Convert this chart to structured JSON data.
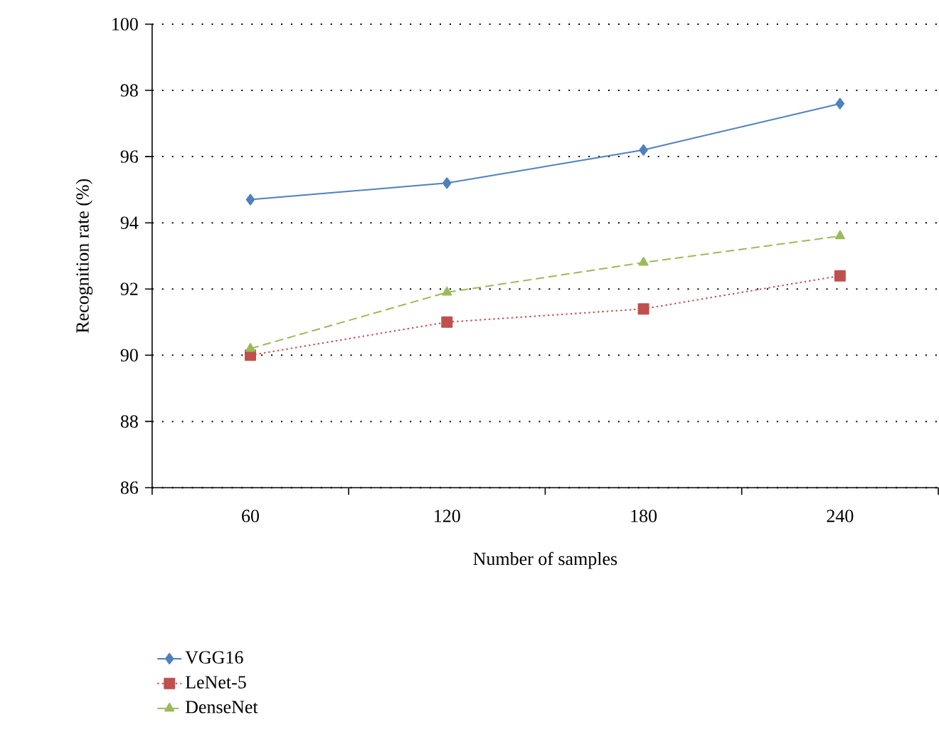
{
  "chart_data": {
    "type": "line",
    "xlabel": "Number of samples",
    "ylabel": "Recognition rate (%)",
    "categories": [
      "60",
      "120",
      "180",
      "240"
    ],
    "series": [
      {
        "name": "VGG16",
        "color": "#4f81bd",
        "marker": "diamond",
        "line_style": "solid",
        "values": [
          94.7,
          95.2,
          96.2,
          97.6
        ]
      },
      {
        "name": "LeNet-5",
        "color": "#c0504d",
        "marker": "square",
        "line_style": "dotted",
        "values": [
          90.0,
          91.0,
          91.4,
          92.4
        ]
      },
      {
        "name": "DenseNet",
        "color": "#9bbb59",
        "marker": "triangle",
        "line_style": "dashed",
        "values": [
          90.2,
          91.9,
          92.8,
          93.6
        ]
      }
    ],
    "ylim": [
      86,
      100
    ],
    "yticks": [
      86,
      88,
      90,
      92,
      94,
      96,
      98,
      100
    ],
    "grid": "y",
    "legend": "bottom left"
  }
}
